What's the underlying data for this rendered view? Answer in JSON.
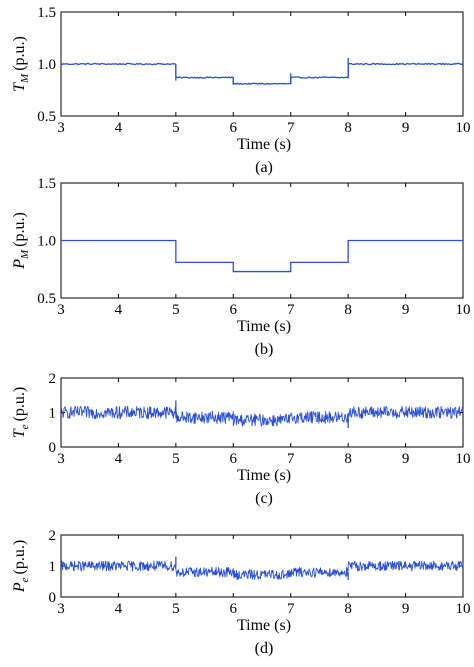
{
  "chart_data": [
    {
      "type": "line",
      "panel_label": "(a)",
      "xlabel": "Time (s)",
      "ylabel": {
        "symbol": "T",
        "subscript": "M",
        "unit": "(p.u.)"
      },
      "xlim": [
        3,
        10
      ],
      "ylim": [
        0.5,
        1.5
      ],
      "xticks": [
        "3",
        "4",
        "5",
        "6",
        "7",
        "8",
        "9",
        "10"
      ],
      "yticks": [
        "0.5",
        "1.0",
        "1.5"
      ],
      "ytick_values": [
        0.5,
        1.0,
        1.5
      ],
      "line_color": "#2a4fd6",
      "noise": 0.006,
      "segments": [
        {
          "x": [
            3,
            5
          ],
          "y": 1.0
        },
        {
          "x": [
            5,
            6
          ],
          "y": 0.87
        },
        {
          "x": [
            6,
            7
          ],
          "y": 0.81
        },
        {
          "x": [
            7,
            8
          ],
          "y": 0.87
        },
        {
          "x": [
            8,
            10
          ],
          "y": 1.0
        }
      ],
      "spikes": [
        {
          "x": 5,
          "from": 1.0,
          "to": 0.84
        },
        {
          "x": 6,
          "from": 0.87,
          "to": 0.8
        },
        {
          "x": 7,
          "from": 0.81,
          "to": 0.91
        },
        {
          "x": 8,
          "from": 0.87,
          "to": 1.06
        }
      ]
    },
    {
      "type": "line",
      "panel_label": "(b)",
      "xlabel": "Time (s)",
      "ylabel": {
        "symbol": "P",
        "subscript": "M",
        "unit": "(p.u.)"
      },
      "xlim": [
        3,
        10
      ],
      "ylim": [
        0.5,
        1.5
      ],
      "xticks": [
        "3",
        "4",
        "5",
        "6",
        "7",
        "8",
        "9",
        "10"
      ],
      "yticks": [
        "0.5",
        "1.0",
        "1.5"
      ],
      "ytick_values": [
        0.5,
        1.0,
        1.5
      ],
      "line_color": "#2a4fd6",
      "noise": 0,
      "segments": [
        {
          "x": [
            3,
            5
          ],
          "y": 1.0
        },
        {
          "x": [
            5,
            6
          ],
          "y": 0.81
        },
        {
          "x": [
            6,
            7
          ],
          "y": 0.73
        },
        {
          "x": [
            7,
            8
          ],
          "y": 0.81
        },
        {
          "x": [
            8,
            10
          ],
          "y": 1.0
        }
      ],
      "spikes": []
    },
    {
      "type": "line",
      "panel_label": "(c)",
      "xlabel": "Time (s)",
      "ylabel": {
        "symbol": "T",
        "subscript": "e",
        "unit": "(p.u.)"
      },
      "xlim": [
        3,
        10
      ],
      "ylim": [
        0,
        2
      ],
      "xticks": [
        "3",
        "4",
        "5",
        "6",
        "7",
        "8",
        "9",
        "10"
      ],
      "yticks": [
        "0",
        "1",
        "2"
      ],
      "ytick_values": [
        0,
        1,
        2
      ],
      "line_color": "#2a4fd6",
      "noise": 0.18,
      "segments": [
        {
          "x": [
            3,
            5
          ],
          "y": 1.0
        },
        {
          "x": [
            5,
            6
          ],
          "y": 0.86
        },
        {
          "x": [
            6,
            7
          ],
          "y": 0.78
        },
        {
          "x": [
            7,
            8
          ],
          "y": 0.86
        },
        {
          "x": [
            8,
            10
          ],
          "y": 1.0
        }
      ],
      "spikes": [
        {
          "x": 5,
          "from": 1.0,
          "to": 1.35
        },
        {
          "x": 8,
          "from": 0.86,
          "to": 0.55
        }
      ]
    },
    {
      "type": "line",
      "panel_label": "(d)",
      "xlabel": "Time (s)",
      "ylabel": {
        "symbol": "P",
        "subscript": "e",
        "unit": "(p.u.)"
      },
      "xlim": [
        3,
        10
      ],
      "ylim": [
        0,
        2
      ],
      "xticks": [
        "3",
        "4",
        "5",
        "6",
        "7",
        "8",
        "9",
        "10"
      ],
      "yticks": [
        "0",
        "1",
        "2"
      ],
      "ytick_values": [
        0,
        1,
        2
      ],
      "line_color": "#2a4fd6",
      "noise": 0.16,
      "segments": [
        {
          "x": [
            3,
            5
          ],
          "y": 1.0
        },
        {
          "x": [
            5,
            6
          ],
          "y": 0.8
        },
        {
          "x": [
            6,
            7
          ],
          "y": 0.72
        },
        {
          "x": [
            7,
            8
          ],
          "y": 0.8
        },
        {
          "x": [
            8,
            10
          ],
          "y": 1.0
        }
      ],
      "spikes": [
        {
          "x": 5,
          "from": 1.0,
          "to": 1.3
        },
        {
          "x": 8,
          "from": 0.8,
          "to": 0.55
        }
      ]
    }
  ]
}
